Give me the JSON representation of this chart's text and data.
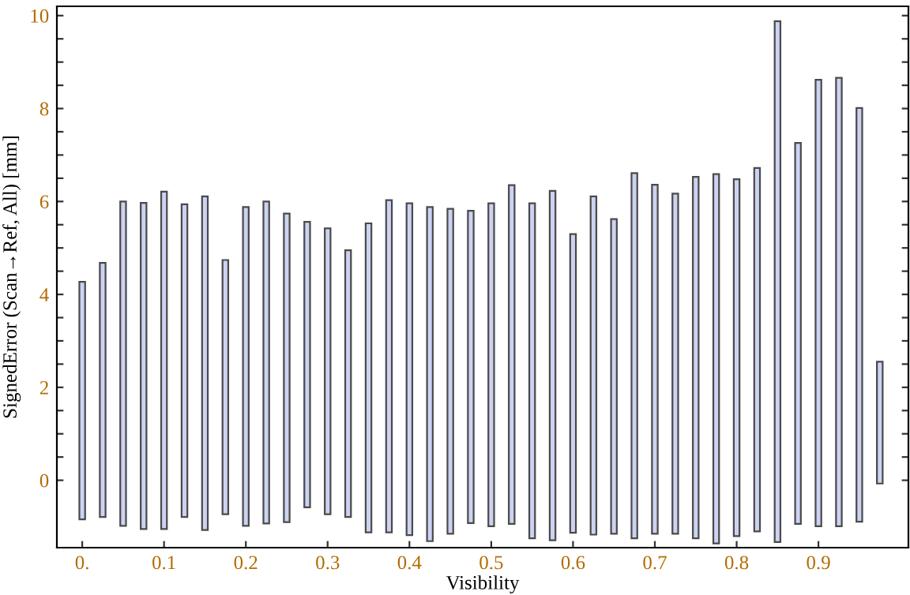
{
  "chart_data": {
    "type": "bar",
    "xlabel": "Visibility",
    "ylabel": "SignedError (Scan→Ref, All) [mm]",
    "x": [
      0,
      0.025,
      0.05,
      0.075,
      0.1,
      0.125,
      0.15,
      0.175,
      0.2,
      0.225,
      0.25,
      0.275,
      0.3,
      0.325,
      0.35,
      0.375,
      0.4,
      0.425,
      0.45,
      0.475,
      0.5,
      0.525,
      0.55,
      0.575,
      0.6,
      0.625,
      0.65,
      0.675,
      0.7,
      0.725,
      0.75,
      0.775,
      0.8,
      0.825,
      0.85,
      0.875,
      0.9,
      0.925,
      0.95,
      0.975
    ],
    "base": [
      -0.84,
      -0.79,
      -0.98,
      -1.05,
      -1.05,
      -0.79,
      -1.07,
      -0.73,
      -0.98,
      -0.93,
      -0.9,
      -0.58,
      -0.73,
      -0.79,
      -1.12,
      -1.12,
      -1.18,
      -1.31,
      -1.15,
      -0.92,
      -0.99,
      -0.94,
      -1.25,
      -1.29,
      -1.13,
      -1.17,
      -1.15,
      -1.25,
      -1.15,
      -1.15,
      -1.25,
      -1.36,
      -1.2,
      -1.1,
      -1.33,
      -0.94,
      -0.99,
      -0.99,
      -0.89,
      -0.07
    ],
    "color": "#ccd3f2",
    "values": [
      5.11,
      5.47,
      6.98,
      7.02,
      7.26,
      6.73,
      7.18,
      5.47,
      6.86,
      6.93,
      6.64,
      6.14,
      6.15,
      5.74,
      6.65,
      7.15,
      7.14,
      7.19,
      6.99,
      6.72,
      6.95,
      7.29,
      7.21,
      7.52,
      6.43,
      7.28,
      6.77,
      7.86,
      7.51,
      7.32,
      7.78,
      7.95,
      7.68,
      7.82,
      11.21,
      8.2,
      9.61,
      9.65,
      8.9,
      2.62
    ],
    "xlim": [
      -0.031,
      1.01
    ],
    "ylim": [
      -1.45,
      10.2
    ],
    "xticks": [
      {
        "value": 0,
        "label": "0."
      },
      0.1,
      0.2,
      0.3,
      0.4,
      0.5,
      0.6,
      0.7,
      0.8,
      0.9
    ],
    "yticks": [
      0,
      {
        "value": 0.5,
        "label": null
      },
      {
        "value": 1,
        "label": null
      },
      {
        "value": 1.5,
        "label": null
      },
      2,
      {
        "value": 2.5,
        "label": null
      },
      {
        "value": 3,
        "label": null
      },
      {
        "value": 3.5,
        "label": null
      },
      4,
      {
        "value": 4.5,
        "label": null
      },
      {
        "value": 5,
        "label": null
      },
      {
        "value": 5.5,
        "label": null
      },
      6,
      {
        "value": 6.5,
        "label": null
      },
      {
        "value": 7,
        "label": null
      },
      {
        "value": 7.5,
        "label": null
      },
      8,
      {
        "value": 8.5,
        "label": null
      },
      {
        "value": 9,
        "label": null
      },
      {
        "value": 9.5,
        "label": null
      },
      10
    ],
    "grid": false,
    "legend": false
  }
}
